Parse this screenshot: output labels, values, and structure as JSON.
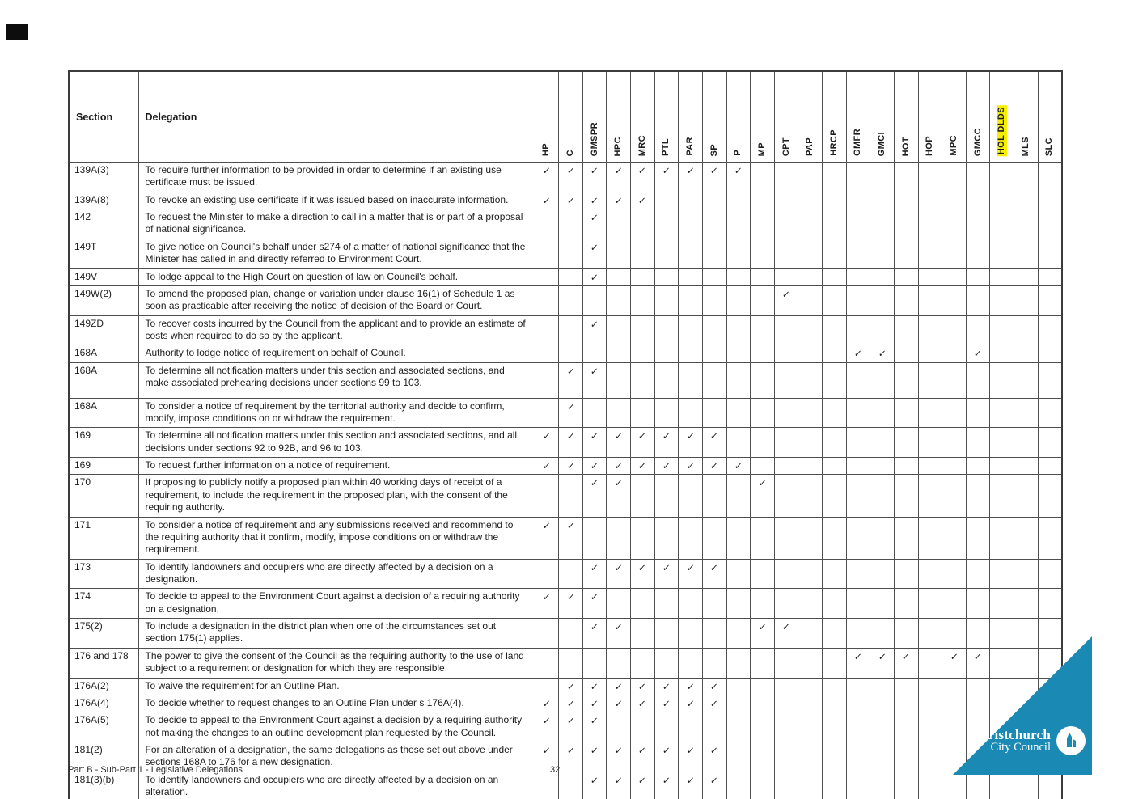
{
  "page": {
    "footer_left": "Part B - Sub-Part 1 - Legislative Delegations",
    "page_number": "32"
  },
  "logo": {
    "line1": "Christchurch",
    "line2": "City Council",
    "teal": "#1a8ab5"
  },
  "table": {
    "headers": {
      "section": "Section",
      "delegation": "Delegation"
    },
    "check_glyph": "✓",
    "highlight_color": "#f7ef00",
    "columns": [
      {
        "code": "HP"
      },
      {
        "code": "C"
      },
      {
        "code": "GMSPR"
      },
      {
        "code": "HPC"
      },
      {
        "code": "MRC"
      },
      {
        "code": "PTL"
      },
      {
        "code": "PAR"
      },
      {
        "code": "SP"
      },
      {
        "code": "P"
      },
      {
        "code": "MP"
      },
      {
        "code": "CPT"
      },
      {
        "code": "PAP"
      },
      {
        "code": "HRCP"
      },
      {
        "code": "GMFR"
      },
      {
        "code": "GMCI"
      },
      {
        "code": "HOT"
      },
      {
        "code": "HOP"
      },
      {
        "code": "MPC"
      },
      {
        "code": "GMCC"
      },
      {
        "code": "HOL DLDS",
        "highlight": true
      },
      {
        "code": "MLS"
      },
      {
        "code": "SLC"
      }
    ],
    "rows": [
      {
        "section": "139A(3)",
        "delegation": "To require further information to be provided in order to determine if an existing use certificate must be issued.",
        "checks": [
          0,
          1,
          2,
          3,
          4,
          5,
          6,
          7,
          8
        ]
      },
      {
        "section": "139A(8)",
        "delegation": "To revoke an existing use certificate if it was issued based on inaccurate information.",
        "checks": [
          0,
          1,
          2,
          3,
          4
        ]
      },
      {
        "section": "142",
        "delegation": "To request the Minister to make a direction to call in a matter that is or part of a proposal of national significance.",
        "checks": [
          2
        ]
      },
      {
        "section": "149T",
        "delegation": "To give notice on Council's behalf under s274 of a matter of national significance that the Minister has called in and directly referred to Environment Court.",
        "checks": [
          2
        ]
      },
      {
        "section": "149V",
        "delegation": "To lodge appeal to the High Court on question of law on Council's behalf.",
        "checks": [
          2
        ]
      },
      {
        "section": "149W(2)",
        "delegation": "To amend the proposed plan, change or variation under clause 16(1) of Schedule 1 as soon as practicable after receiving the notice of decision of the Board or Court.",
        "checks": [
          10
        ]
      },
      {
        "section": "149ZD",
        "delegation": "To recover costs incurred by the Council from the applicant and to provide an estimate of costs when required to do so by the applicant.",
        "checks": [
          2
        ]
      },
      {
        "section": "168A",
        "delegation": "Authority to lodge notice of requirement on behalf of Council.",
        "checks": [
          13,
          14,
          18
        ]
      },
      {
        "section": "168A",
        "delegation": "To determine all notification matters under this section and associated sections, and make associated prehearing decisions under sections 99 to 103.",
        "checks": [
          1,
          2
        ],
        "extra_space": true
      },
      {
        "section": "168A",
        "delegation": "To consider a notice of requirement by the territorial authority and decide to confirm, modify, impose conditions on or withdraw the requirement.",
        "checks": [
          1
        ]
      },
      {
        "section": "169",
        "delegation": "To determine all notification matters under this section and associated sections, and all decisions under sections 92 to 92B, and 96 to 103.",
        "checks": [
          0,
          1,
          2,
          3,
          4,
          5,
          6,
          7
        ]
      },
      {
        "section": "169",
        "delegation": "To request further information on a notice of requirement.",
        "checks": [
          0,
          1,
          2,
          3,
          4,
          5,
          6,
          7,
          8
        ]
      },
      {
        "section": "170",
        "delegation": "If proposing to publicly notify a proposed plan within 40 working days of receipt of a requirement, to include the requirement in the proposed plan, with the consent of the requiring authority.",
        "checks": [
          2,
          3,
          9
        ]
      },
      {
        "section": "171",
        "delegation": "To consider a notice of requirement and any submissions received and recommend to the requiring authority that it confirm, modify, impose conditions on or withdraw the requirement.",
        "checks": [
          0,
          1
        ]
      },
      {
        "section": "173",
        "delegation": "To identify landowners and occupiers who are directly affected by a decision on a designation.",
        "checks": [
          2,
          3,
          4,
          5,
          6,
          7
        ]
      },
      {
        "section": "174",
        "delegation": "To decide to appeal to the Environment Court against a decision of a requiring authority on a designation.",
        "checks": [
          0,
          1,
          2
        ]
      },
      {
        "section": "175(2)",
        "delegation": "To include a designation in the district plan when one of the circumstances set out section 175(1) applies.",
        "checks": [
          2,
          3,
          9,
          10
        ]
      },
      {
        "section": "176 and 178",
        "delegation": "The power to give the consent of the Council as the requiring authority to the use of land subject to a requirement or designation for which they are responsible.",
        "checks": [
          13,
          14,
          15,
          17,
          18
        ]
      },
      {
        "section": "176A(2)",
        "delegation": "To waive the requirement for an Outline Plan.",
        "checks": [
          1,
          2,
          3,
          4,
          5,
          6,
          7
        ]
      },
      {
        "section": "176A(4)",
        "delegation": "To decide whether to request changes to an Outline Plan under s 176A(4).",
        "checks": [
          0,
          1,
          2,
          3,
          4,
          5,
          6,
          7
        ]
      },
      {
        "section": "176A(5)",
        "delegation": "To decide to appeal to the Environment Court against a decision by a requiring authority not making the changes to an outline development plan requested by the Council.",
        "checks": [
          0,
          1,
          2
        ]
      },
      {
        "section": "181(2)",
        "delegation": "For an alteration of a designation, the same delegations as those set out above under sections 168A to 176 for a new designation.",
        "checks": [
          0,
          1,
          2,
          3,
          4,
          5,
          6,
          7
        ]
      },
      {
        "section": "181(3)(b)",
        "delegation": "To identify landowners and occupiers who are directly affected by a decision on an alteration.",
        "checks": [
          2,
          3,
          4,
          5,
          6,
          7
        ]
      }
    ]
  }
}
